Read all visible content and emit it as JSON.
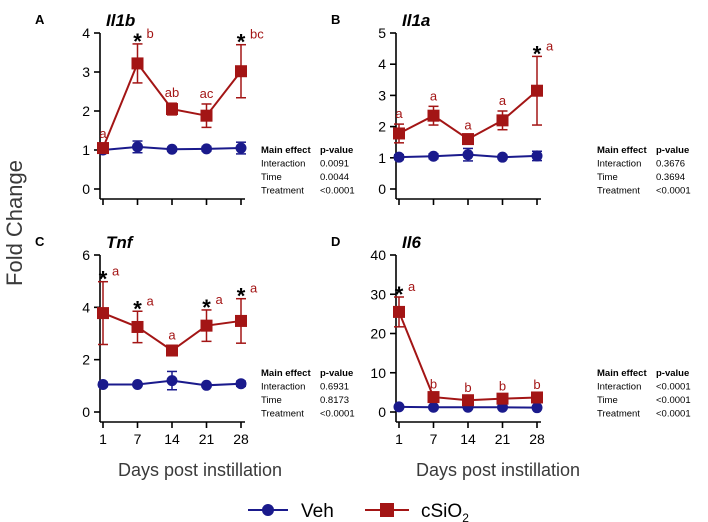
{
  "figure": {
    "y_axis_label": "Fold Change",
    "x_axis_label": "Days post instillation",
    "legend": [
      {
        "name": "Veh",
        "color": "#1a1a8c",
        "marker": "circle"
      },
      {
        "name": "cSiO",
        "subscript": "2",
        "color": "#a31515",
        "marker": "square"
      }
    ],
    "colors": {
      "veh": "#1a1a8c",
      "csio2": "#a31515",
      "axis": "#000000"
    }
  },
  "chart_data": [
    {
      "type": "line",
      "panel": "A",
      "title": "Il1b",
      "x": [
        1,
        7,
        14,
        21,
        28
      ],
      "xticks_shown": false,
      "ylim": [
        0,
        4
      ],
      "yticks": [
        0,
        1,
        2,
        3,
        4
      ],
      "series": [
        {
          "name": "Veh",
          "values": [
            1.0,
            1.08,
            1.02,
            1.03,
            1.05
          ],
          "errors": [
            0.08,
            0.15,
            0.05,
            0.06,
            0.15
          ]
        },
        {
          "name": "cSiO2",
          "values": [
            1.05,
            3.22,
            2.05,
            1.88,
            3.02
          ],
          "errors": [
            0.1,
            0.5,
            0.15,
            0.3,
            0.68
          ],
          "stars": [
            false,
            true,
            false,
            false,
            true
          ],
          "letters": [
            "a",
            "b",
            "ab",
            "ac",
            "bc"
          ]
        }
      ],
      "stats": {
        "header": [
          "Main effect",
          "p-value"
        ],
        "rows": [
          [
            "Interaction",
            "0.0091"
          ],
          [
            "Time",
            "0.0044"
          ],
          [
            "Treatment",
            "<0.0001"
          ]
        ]
      }
    },
    {
      "type": "line",
      "panel": "B",
      "title": "Il1a",
      "x": [
        1,
        7,
        14,
        21,
        28
      ],
      "xticks_shown": false,
      "ylim": [
        0,
        5
      ],
      "yticks": [
        0,
        1,
        2,
        3,
        4,
        5
      ],
      "series": [
        {
          "name": "Veh",
          "values": [
            1.02,
            1.05,
            1.1,
            1.02,
            1.06
          ],
          "errors": [
            0.08,
            0.08,
            0.2,
            0.06,
            0.15
          ]
        },
        {
          "name": "cSiO2",
          "values": [
            1.78,
            2.35,
            1.6,
            2.2,
            3.15
          ],
          "errors": [
            0.3,
            0.3,
            0.12,
            0.3,
            1.1
          ],
          "stars": [
            false,
            false,
            false,
            false,
            true
          ],
          "letters": [
            "a",
            "a",
            "a",
            "a",
            "a"
          ]
        }
      ],
      "stats": {
        "header": [
          "Main effect",
          "p-value"
        ],
        "rows": [
          [
            "Interaction",
            "0.3676"
          ],
          [
            "Time",
            "0.3694"
          ],
          [
            "Treatment",
            "<0.0001"
          ]
        ]
      }
    },
    {
      "type": "line",
      "panel": "C",
      "title": "Tnf",
      "x": [
        1,
        7,
        14,
        21,
        28
      ],
      "xticks_shown": true,
      "ylim": [
        0,
        6
      ],
      "yticks": [
        0,
        2,
        4,
        6
      ],
      "series": [
        {
          "name": "Veh",
          "values": [
            1.05,
            1.05,
            1.2,
            1.02,
            1.08
          ],
          "errors": [
            0.08,
            0.06,
            0.35,
            0.06,
            0.1
          ]
        },
        {
          "name": "cSiO2",
          "values": [
            3.78,
            3.25,
            2.35,
            3.3,
            3.48
          ],
          "errors": [
            1.2,
            0.6,
            0.2,
            0.6,
            0.85
          ],
          "stars": [
            true,
            true,
            false,
            true,
            true
          ],
          "letters": [
            "a",
            "a",
            "a",
            "a",
            "a"
          ]
        }
      ],
      "stats": {
        "header": [
          "Main effect",
          "p-value"
        ],
        "rows": [
          [
            "Interaction",
            "0.6931"
          ],
          [
            "Time",
            "0.8173"
          ],
          [
            "Treatment",
            "<0.0001"
          ]
        ]
      }
    },
    {
      "type": "line",
      "panel": "D",
      "title": "Il6",
      "x": [
        1,
        7,
        14,
        21,
        28
      ],
      "xticks_shown": true,
      "ylim": [
        0,
        40
      ],
      "yticks": [
        0,
        10,
        20,
        30,
        40
      ],
      "series": [
        {
          "name": "Veh",
          "values": [
            1.3,
            1.2,
            1.2,
            1.2,
            1.1
          ],
          "errors": [
            0.3,
            0.3,
            0.3,
            0.3,
            0.3
          ]
        },
        {
          "name": "cSiO2",
          "values": [
            25.5,
            3.8,
            3.0,
            3.4,
            3.7
          ],
          "errors": [
            3.8,
            0.6,
            0.6,
            0.6,
            0.6
          ],
          "stars": [
            true,
            false,
            false,
            false,
            false
          ],
          "letters": [
            "a",
            "b",
            "b",
            "b",
            "b"
          ]
        }
      ],
      "stats": {
        "header": [
          "Main effect",
          "p-value"
        ],
        "rows": [
          [
            "Interaction",
            "<0.0001"
          ],
          [
            "Time",
            "<0.0001"
          ],
          [
            "Treatment",
            "<0.0001"
          ]
        ]
      }
    }
  ]
}
